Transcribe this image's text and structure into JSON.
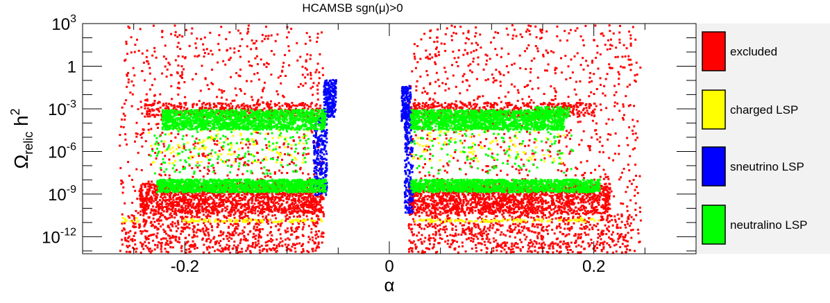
{
  "chart_data": {
    "type": "scatter",
    "title": "HCAMSB    sgn(μ)>0",
    "xlabel": "α",
    "ylabel_base": "Ω",
    "ylabel_sub": "relic",
    "ylabel_h": " h",
    "ylabel_sup": "2",
    "xlim": [
      -0.3,
      0.3
    ],
    "ylim_log10": [
      -13.2,
      3
    ],
    "yscale": "log",
    "x_ticks": [
      {
        "value": -0.2,
        "label": "-0.2"
      },
      {
        "value": 0,
        "label": "0"
      },
      {
        "value": 0.2,
        "label": "0.2"
      }
    ],
    "y_ticks": [
      {
        "exp": 3,
        "base": "10",
        "sup": "3"
      },
      {
        "exp": 0,
        "base": "1",
        "sup": ""
      },
      {
        "exp": -3,
        "base": "10",
        "sup": "-3"
      },
      {
        "exp": -6,
        "base": "10",
        "sup": "-6"
      },
      {
        "exp": -9,
        "base": "10",
        "sup": "-9"
      },
      {
        "exp": -12,
        "base": "10",
        "sup": "-12"
      }
    ],
    "legend": [
      {
        "label": "excluded",
        "color": "#ff0000"
      },
      {
        "label": "charged LSP",
        "color": "#ffff00"
      },
      {
        "label": "sneutrino LSP",
        "color": "#0000ff"
      },
      {
        "label": "neutralino LSP",
        "color": "#00ff00"
      }
    ],
    "series": [
      {
        "name": "excluded",
        "color": "#ff0000",
        "regions": [
          {
            "x": [
              -0.265,
              -0.065
            ],
            "log10_y": [
              -13.2,
              3.0
            ],
            "count": 900
          },
          {
            "x": [
              0.018,
              0.245
            ],
            "log10_y": [
              -13.2,
              3.0
            ],
            "count": 1000
          },
          {
            "x": [
              -0.245,
              -0.065
            ],
            "log10_y": [
              -10.3,
              -8.2
            ],
            "count": 1500
          },
          {
            "x": [
              0.018,
              0.215
            ],
            "log10_y": [
              -10.3,
              -8.2
            ],
            "count": 1600
          },
          {
            "x": [
              -0.26,
              -0.065
            ],
            "log10_y": [
              -13.2,
              -10.3
            ],
            "count": 600
          },
          {
            "x": [
              0.018,
              0.235
            ],
            "log10_y": [
              -13.2,
              -10.3
            ],
            "count": 650
          },
          {
            "x": [
              -0.24,
              -0.07
            ],
            "log10_y": [
              -3.5,
              -2.5
            ],
            "count": 400
          },
          {
            "x": [
              0.02,
              0.2
            ],
            "log10_y": [
              -3.5,
              -2.5
            ],
            "count": 450
          }
        ]
      },
      {
        "name": "charged LSP",
        "color": "#ffff00",
        "regions": [
          {
            "x": [
              -0.205,
              -0.065
            ],
            "log10_y": [
              -10.9,
              -10.7
            ],
            "count": 90
          },
          {
            "x": [
              0.02,
              0.19
            ],
            "log10_y": [
              -10.9,
              -10.7
            ],
            "count": 90
          },
          {
            "x": [
              -0.24,
              -0.08
            ],
            "log10_y": [
              -6.8,
              -4.3
            ],
            "count": 120
          },
          {
            "x": [
              0.02,
              0.17
            ],
            "log10_y": [
              -6.8,
              -4.3
            ],
            "count": 100
          },
          {
            "x": [
              -0.265,
              -0.245
            ],
            "log10_y": [
              -10.9,
              -10.6
            ],
            "count": 10
          },
          {
            "x": [
              0.18,
              0.205
            ],
            "log10_y": [
              -10.9,
              -10.6
            ],
            "count": 10
          }
        ]
      },
      {
        "name": "sneutrino LSP",
        "color": "#0000ff",
        "regions": [
          {
            "x": [
              -0.065,
              -0.053
            ],
            "log10_y": [
              -3.5,
              -0.9
            ],
            "count": 220
          },
          {
            "x": [
              -0.075,
              -0.062
            ],
            "log10_y": [
              -9.0,
              -3.5
            ],
            "count": 260
          },
          {
            "x": [
              0.011,
              0.02
            ],
            "log10_y": [
              -3.8,
              -1.3
            ],
            "count": 180
          },
          {
            "x": [
              0.014,
              0.022
            ],
            "log10_y": [
              -10.3,
              -3.8
            ],
            "count": 200
          }
        ]
      },
      {
        "name": "neutralino LSP",
        "color": "#00ff00",
        "regions": [
          {
            "x": [
              -0.223,
              -0.063
            ],
            "log10_y": [
              -4.4,
              -3.0
            ],
            "count": 1500
          },
          {
            "x": [
              0.02,
              0.17
            ],
            "log10_y": [
              -4.4,
              -3.0
            ],
            "count": 1500
          },
          {
            "x": [
              0.14,
              0.175
            ],
            "log10_y": [
              -3.6,
              -2.8
            ],
            "count": 120
          },
          {
            "x": [
              -0.228,
              -0.063
            ],
            "log10_y": [
              -8.8,
              -7.9
            ],
            "count": 1400
          },
          {
            "x": [
              0.02,
              0.205
            ],
            "log10_y": [
              -8.8,
              -7.9
            ],
            "count": 1400
          },
          {
            "x": [
              -0.235,
              -0.08
            ],
            "log10_y": [
              -7.5,
              -4.5
            ],
            "count": 160
          },
          {
            "x": [
              0.02,
              0.18
            ],
            "log10_y": [
              -7.5,
              -4.5
            ],
            "count": 120
          }
        ]
      }
    ]
  }
}
